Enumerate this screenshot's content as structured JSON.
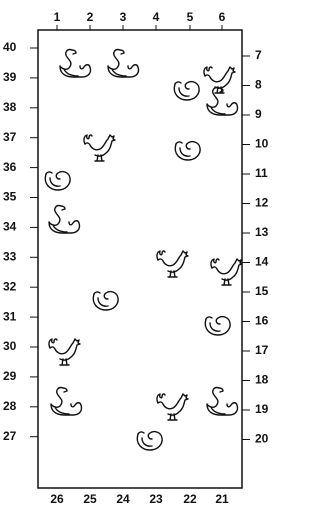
{
  "top_labels": [
    "1",
    "2",
    "3",
    "4",
    "5",
    "6"
  ],
  "left_labels": [
    "40",
    "39",
    "38",
    "37",
    "36",
    "35",
    "34",
    "33",
    "32",
    "31",
    "30",
    "29",
    "28",
    "27"
  ],
  "right_labels": [
    "7",
    "8",
    "9",
    "10",
    "11",
    "12",
    "13",
    "14",
    "15",
    "16",
    "17",
    "18",
    "19",
    "20"
  ],
  "bottom_labels": [
    "26",
    "25",
    "24",
    "23",
    "22",
    "21"
  ]
}
